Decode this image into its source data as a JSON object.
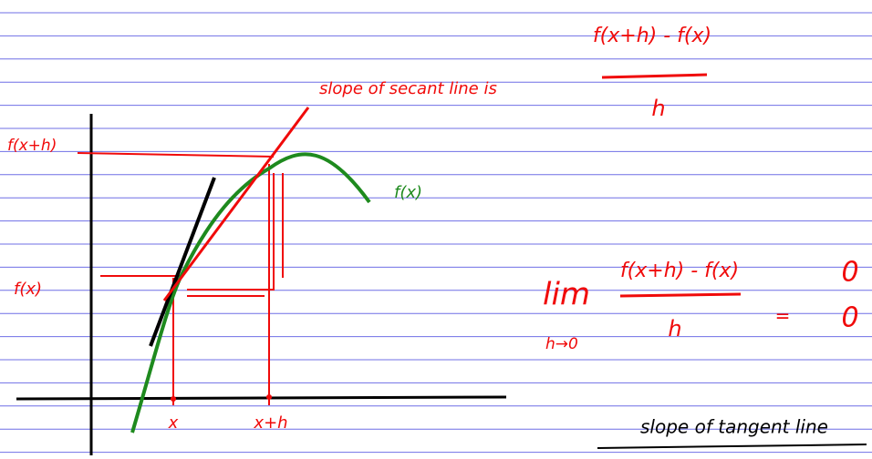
{
  "annotations": {
    "secant_label": "slope of secant line is",
    "secant_numerator": "f(x+h) - f(x)",
    "secant_denominator": "h"
  },
  "axis_labels": {
    "f_x_plus_h": "f(x+h)",
    "f_x": "f(x)",
    "x": "x",
    "x_plus_h": "x+h"
  },
  "curve_label": "f(x)",
  "limit": {
    "lim": "lim",
    "subscript": "h→0",
    "numerator": "f(x+h) - f(x)",
    "denominator": "h",
    "equals": "=",
    "result_numerator": "0",
    "result_denominator": "0"
  },
  "tangent_label": "slope of tangent line"
}
